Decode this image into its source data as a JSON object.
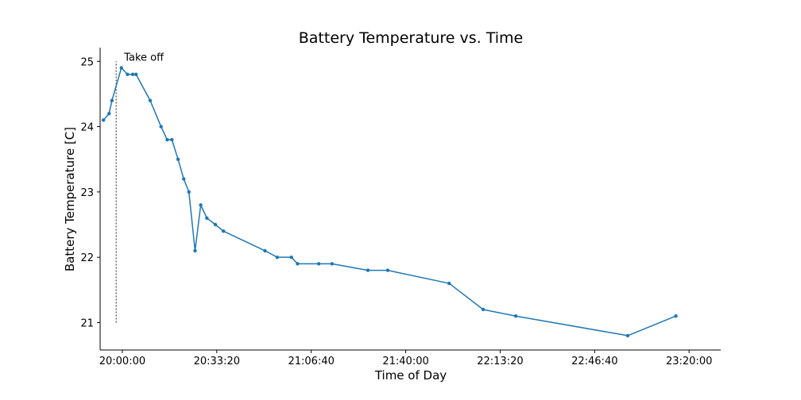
{
  "chart_data": {
    "type": "line",
    "title": "Battery Temperature vs. Time",
    "xlabel": "Time of Day",
    "ylabel": "Battery Temperature [C]",
    "x_ticks": [
      "20:00:00",
      "20:33:20",
      "21:06:40",
      "21:40:00",
      "22:13:20",
      "22:46:40",
      "23:20:00"
    ],
    "y_ticks": [
      "21",
      "22",
      "23",
      "24",
      "25"
    ],
    "xlim": [
      "19:52:10",
      "23:31:10"
    ],
    "ylim": [
      20.58,
      25.21
    ],
    "grid": false,
    "series": [
      {
        "color": "#1f77b4",
        "points": [
          {
            "x": "19:53:20",
            "y": 24.1
          },
          {
            "x": "19:55:20",
            "y": 24.2
          },
          {
            "x": "19:56:20",
            "y": 24.4
          },
          {
            "x": "19:59:40",
            "y": 24.9
          },
          {
            "x": "20:01:50",
            "y": 24.8
          },
          {
            "x": "20:03:40",
            "y": 24.8
          },
          {
            "x": "20:04:50",
            "y": 24.8
          },
          {
            "x": "20:09:50",
            "y": 24.4
          },
          {
            "x": "20:13:40",
            "y": 24.0
          },
          {
            "x": "20:15:50",
            "y": 23.8
          },
          {
            "x": "20:17:30",
            "y": 23.8
          },
          {
            "x": "20:19:40",
            "y": 23.5
          },
          {
            "x": "20:21:40",
            "y": 23.2
          },
          {
            "x": "20:23:30",
            "y": 23.0
          },
          {
            "x": "20:25:40",
            "y": 22.1
          },
          {
            "x": "20:27:40",
            "y": 22.8
          },
          {
            "x": "20:29:50",
            "y": 22.6
          },
          {
            "x": "20:32:50",
            "y": 22.5
          },
          {
            "x": "20:35:40",
            "y": 22.4
          },
          {
            "x": "20:50:20",
            "y": 22.1
          },
          {
            "x": "20:54:40",
            "y": 22.0
          },
          {
            "x": "20:59:40",
            "y": 22.0
          },
          {
            "x": "21:01:50",
            "y": 21.9
          },
          {
            "x": "21:09:20",
            "y": 21.9
          },
          {
            "x": "21:14:00",
            "y": 21.9
          },
          {
            "x": "21:26:40",
            "y": 21.8
          },
          {
            "x": "21:33:40",
            "y": 21.8
          },
          {
            "x": "21:55:20",
            "y": 21.6
          },
          {
            "x": "22:07:20",
            "y": 21.2
          },
          {
            "x": "22:18:50",
            "y": 21.1
          },
          {
            "x": "22:58:20",
            "y": 20.8
          },
          {
            "x": "23:15:20",
            "y": 21.1
          }
        ]
      }
    ],
    "annotations": [
      {
        "text": "Take off",
        "x": "19:57:50",
        "y_from": 21.0,
        "y_to": 25.0,
        "style": "dotted vertical line",
        "color": "#555555"
      }
    ]
  }
}
